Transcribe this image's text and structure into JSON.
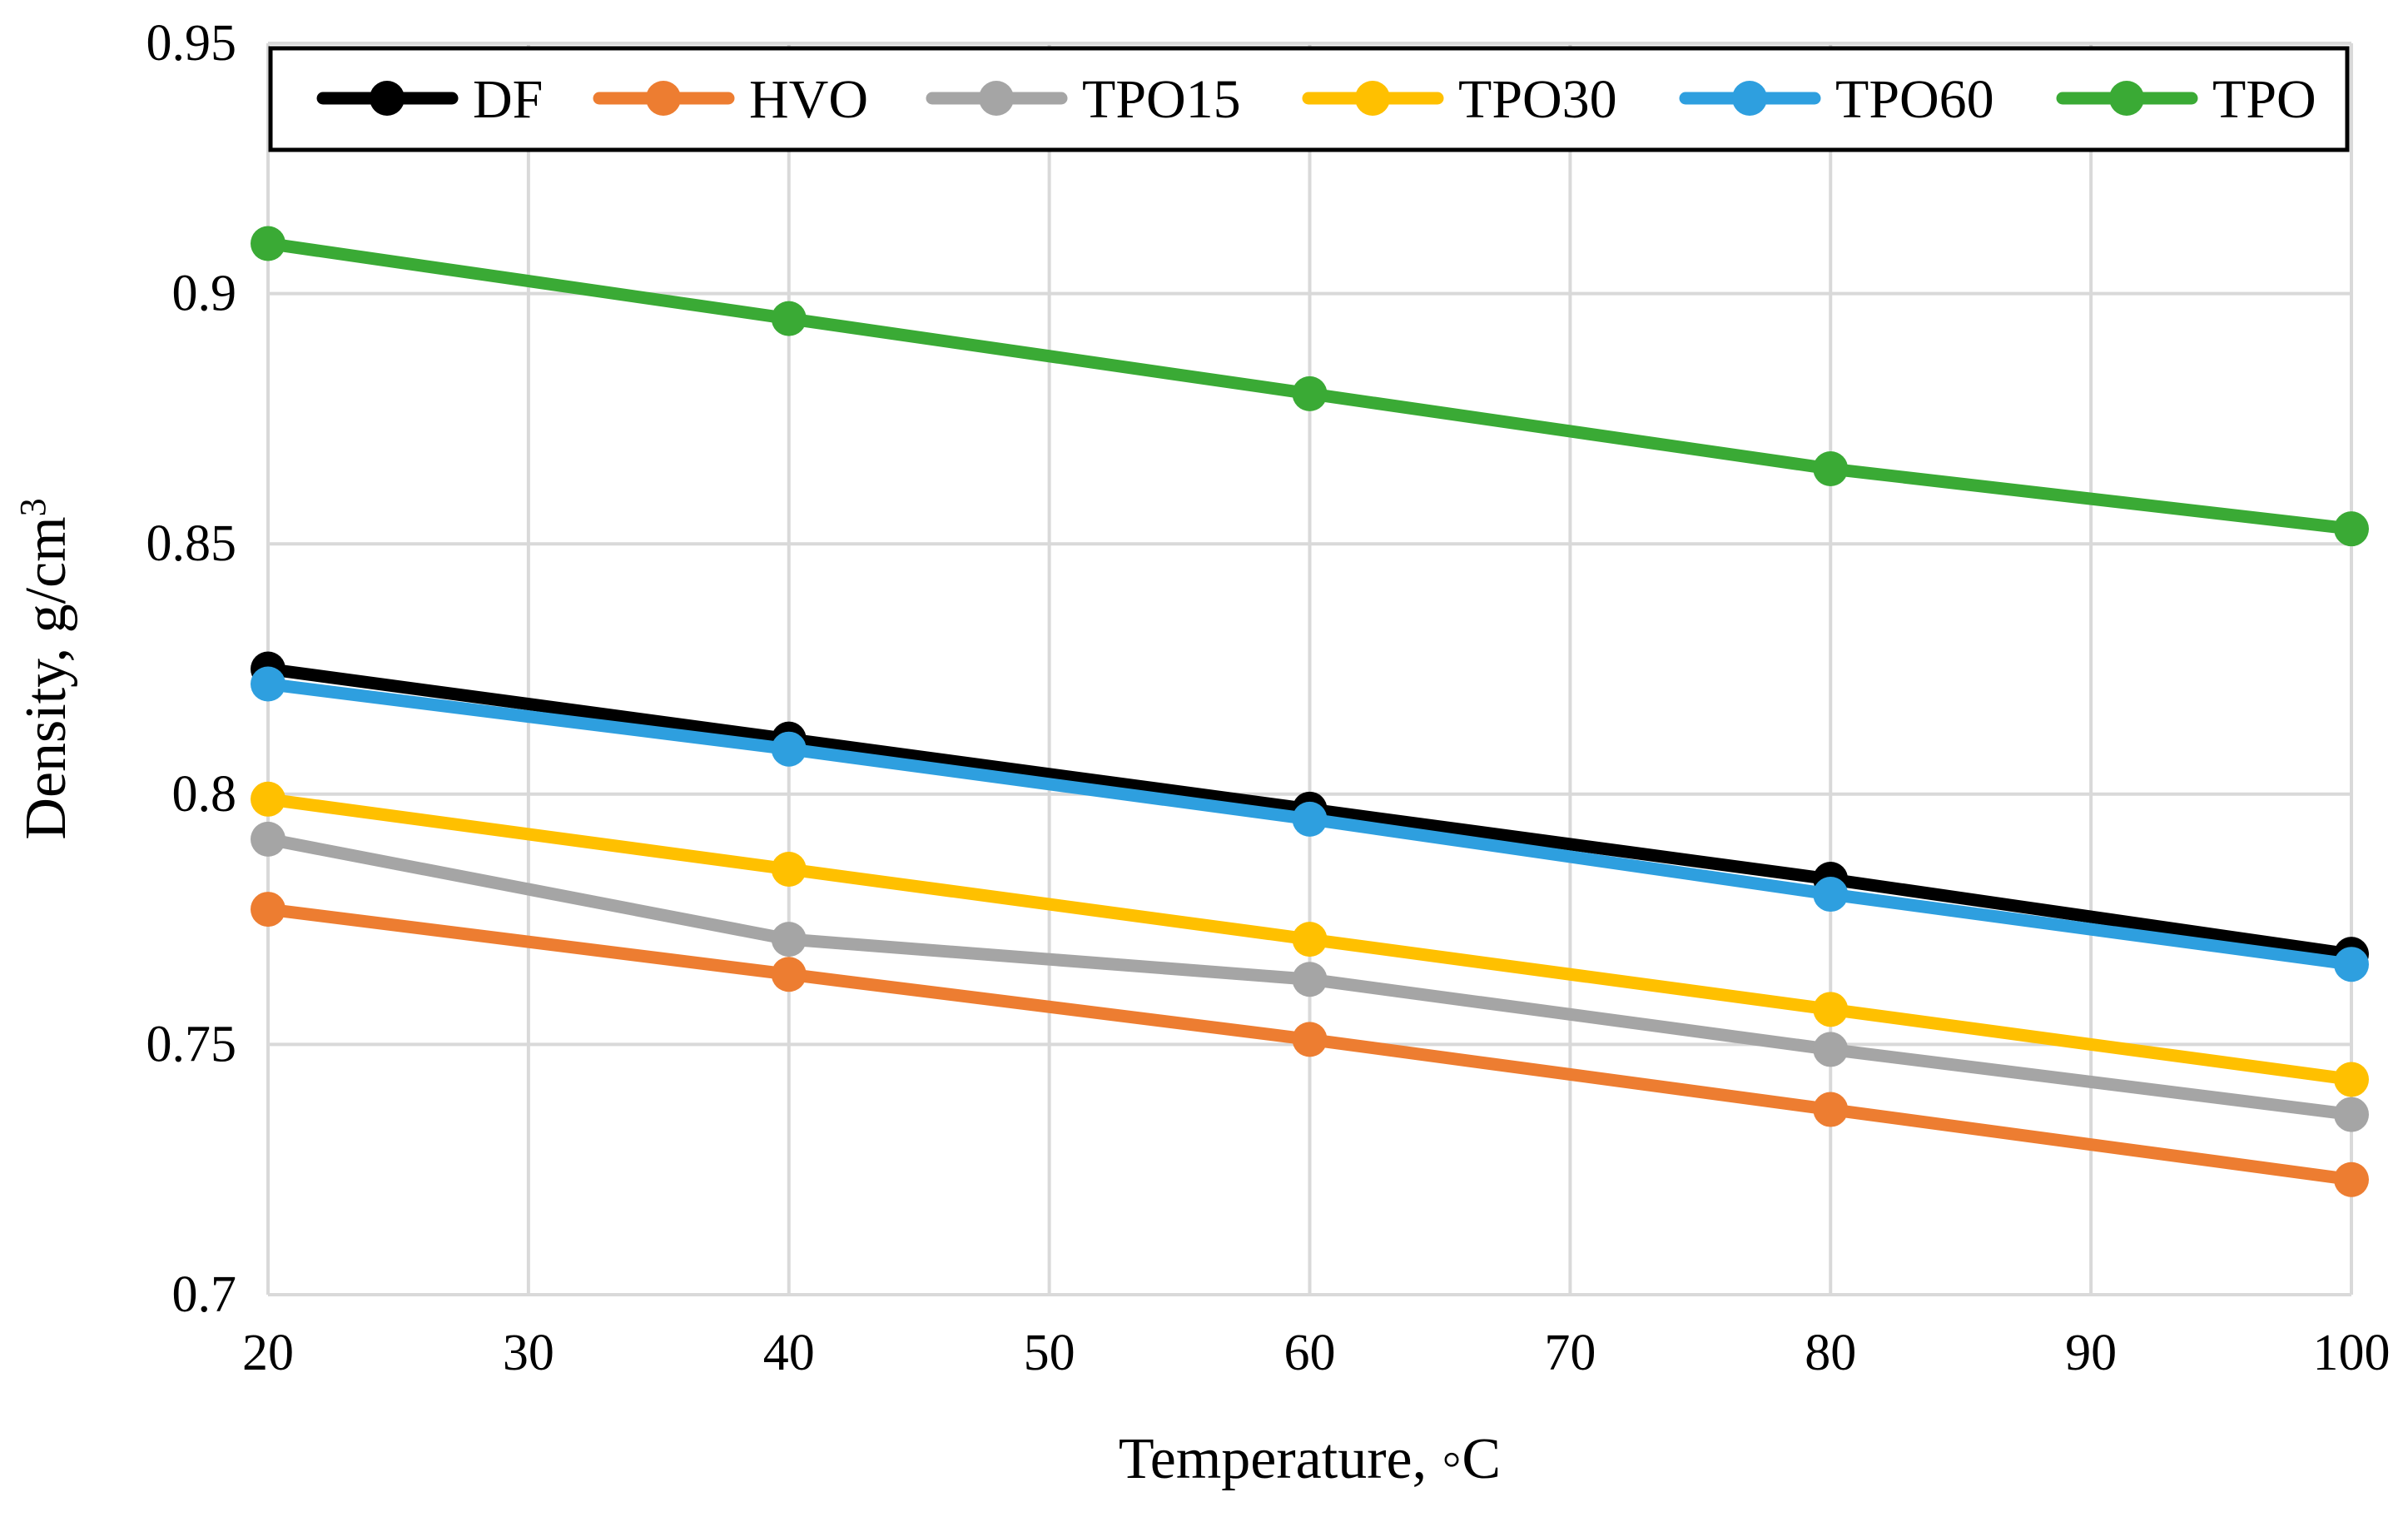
{
  "chart_data": {
    "type": "line",
    "title": "",
    "xlabel": "Temperature, ◦C",
    "ylabel_main": "Density, g/cm",
    "ylabel_sup": "3",
    "xlim": [
      20,
      100
    ],
    "ylim": [
      0.7,
      0.95
    ],
    "xticks": [
      20,
      30,
      40,
      50,
      60,
      70,
      80,
      90,
      100
    ],
    "yticks": [
      0.7,
      0.75,
      0.8,
      0.85,
      0.9,
      0.95
    ],
    "xtick_labels": [
      "20",
      "30",
      "40",
      "50",
      "60",
      "70",
      "80",
      "90",
      "100"
    ],
    "ytick_labels": [
      "0.7",
      "0.75",
      "0.8",
      "0.85",
      "0.9",
      "0.95"
    ],
    "grid": true,
    "legend_position": "top",
    "x": [
      20,
      40,
      60,
      80,
      100
    ],
    "series": [
      {
        "name": "DF",
        "color": "#000000",
        "values": [
          0.825,
          0.811,
          0.797,
          0.783,
          0.768
        ]
      },
      {
        "name": "HVO",
        "color": "#ed7d31",
        "values": [
          0.777,
          0.764,
          0.751,
          0.737,
          0.723
        ]
      },
      {
        "name": "TPO15",
        "color": "#a5a5a5",
        "values": [
          0.791,
          0.771,
          0.763,
          0.749,
          0.736
        ]
      },
      {
        "name": "TPO30",
        "color": "#ffc000",
        "values": [
          0.799,
          0.785,
          0.771,
          0.757,
          0.743
        ]
      },
      {
        "name": "TPO60",
        "color": "#2e9fdf",
        "values": [
          0.822,
          0.809,
          0.795,
          0.78,
          0.766
        ]
      },
      {
        "name": "TPO",
        "color": "#3aaa35",
        "values": [
          0.91,
          0.895,
          0.88,
          0.865,
          0.853
        ]
      }
    ]
  }
}
